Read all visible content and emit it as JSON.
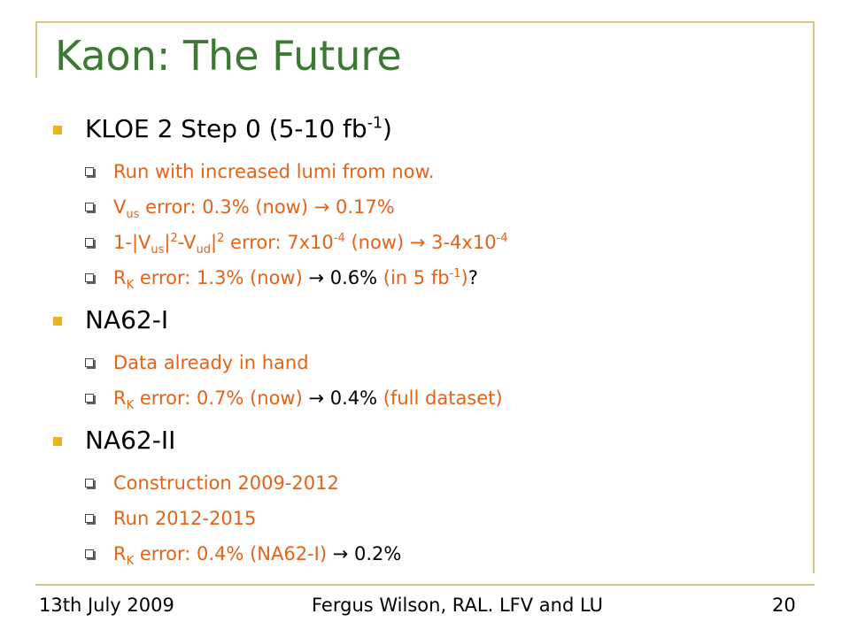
{
  "slide": {
    "title": "Kaon: The Future",
    "accent_colors": {
      "title": "#3c7a33",
      "sub_text": "#e2641a",
      "bullet": "#e8b521",
      "frame": "#d3c98a"
    },
    "sections": [
      {
        "heading": {
          "main": "KLOE 2 Step 0 (5-10 fb",
          "sup": "-1",
          "tail": ")"
        },
        "items": [
          {
            "segments": [
              {
                "text": "Run with increased lumi from now."
              }
            ]
          },
          {
            "segments": [
              {
                "text": "V"
              },
              {
                "sub": "us"
              },
              {
                "text": " error: 0.3% (now) → 0.17%"
              }
            ]
          },
          {
            "segments": [
              {
                "text": "1-|V"
              },
              {
                "sub": "us"
              },
              {
                "text": "|"
              },
              {
                "sup": "2"
              },
              {
                "text": "-V"
              },
              {
                "sub": "ud"
              },
              {
                "text": "|"
              },
              {
                "sup": "2"
              },
              {
                "text": " error: 7x10"
              },
              {
                "sup": "-4"
              },
              {
                "text": " (now) → 3-4x10"
              },
              {
                "sup": "-4"
              }
            ]
          },
          {
            "segments": [
              {
                "text": "R"
              },
              {
                "sub": "K"
              },
              {
                "text": " error: 1.3% (now) "
              },
              {
                "text": "→ 0.6%",
                "color": "black"
              },
              {
                "text": " (in 5 fb"
              },
              {
                "sup": "-1"
              },
              {
                "text": ")"
              },
              {
                "text": "?",
                "color": "black"
              }
            ]
          }
        ]
      },
      {
        "heading": {
          "main": "NA62-I"
        },
        "items": [
          {
            "segments": [
              {
                "text": "Data already in hand"
              }
            ]
          },
          {
            "segments": [
              {
                "text": "R"
              },
              {
                "sub": "K"
              },
              {
                "text": " error: 0.7% (now) "
              },
              {
                "text": "→ 0.4%",
                "color": "black"
              },
              {
                "text": " (full dataset)"
              }
            ]
          }
        ]
      },
      {
        "heading": {
          "main": "NA62-II"
        },
        "items": [
          {
            "segments": [
              {
                "text": "Construction 2009-2012"
              }
            ]
          },
          {
            "segments": [
              {
                "text": "Run 2012-2015"
              }
            ]
          },
          {
            "segments": [
              {
                "text": "R"
              },
              {
                "sub": "K"
              },
              {
                "text": " error: 0.4% (NA62-I) "
              },
              {
                "text": "→ 0.2%",
                "color": "black"
              }
            ]
          }
        ]
      }
    ]
  },
  "footer": {
    "date": "13th July 2009",
    "author": "Fergus Wilson, RAL. LFV and LU",
    "page": "20"
  }
}
